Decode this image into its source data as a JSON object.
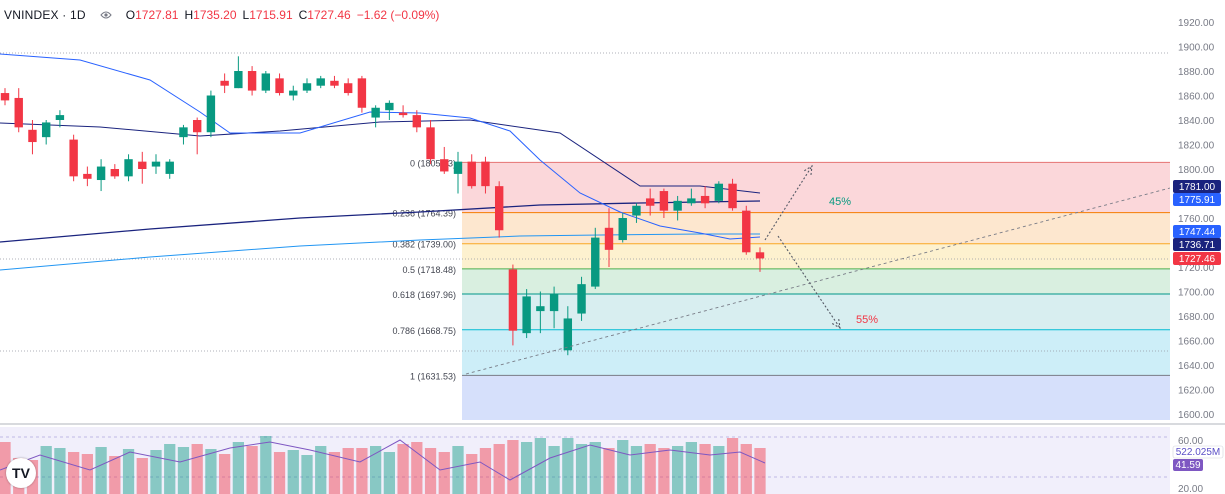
{
  "header": {
    "symbol": "VNINDEX · 1D",
    "open_label": "O",
    "open": "1727.81",
    "high_label": "H",
    "high": "1735.20",
    "low_label": "L",
    "low": "1715.91",
    "close_label": "C",
    "close": "1727.46",
    "change": "−1.62 (−0.09%)",
    "change_color": "#f23645",
    "eye_icon": "eye-icon"
  },
  "logo_text": "TV",
  "colors": {
    "up": "#089981",
    "down": "#f23645",
    "ma_blue": "#2962ff",
    "ma_navy": "#1a237e"
  },
  "price_axis": {
    "min": 1600,
    "max": 1920,
    "step": 20,
    "labels": [
      "1920.00",
      "1900.00",
      "1880.00",
      "1860.00",
      "1840.00",
      "1820.00",
      "1800.00",
      "1780.00",
      "1760.00",
      "1740.00",
      "1720.00",
      "1700.00",
      "1680.00",
      "1660.00",
      "1640.00",
      "1620.00",
      "1600.00"
    ]
  },
  "price_tags": [
    {
      "text": "1781.00",
      "value": 1781.0,
      "color": "#1a237e"
    },
    {
      "text": "1775.91",
      "value": 1775.91,
      "color": "#2962ff"
    },
    {
      "text": "1747.44",
      "value": 1747.44,
      "color": "#2962ff"
    },
    {
      "text": "1736.71",
      "value": 1736.71,
      "color": "#1a237e"
    },
    {
      "text": "1727.46",
      "value": 1727.46,
      "color": "#f23645"
    }
  ],
  "fib_levels": [
    {
      "ratio": "0",
      "text": "0 (1805.43)",
      "value": 1805.43,
      "fill": "#fbd7da",
      "line": "#e57373"
    },
    {
      "ratio": "0.236",
      "text": "0.236 (1764.39)",
      "value": 1764.39,
      "fill": "#fde7cf",
      "line": "#f57c00"
    },
    {
      "ratio": "0.382",
      "text": "0.382 (1739.00)",
      "value": 1739.0,
      "fill": "#fdf1cf",
      "line": "#f9a825"
    },
    {
      "ratio": "0.5",
      "text": "0.5 (1718.48)",
      "value": 1718.48,
      "fill": "#d9efe0",
      "line": "#4caf50"
    },
    {
      "ratio": "0.618",
      "text": "0.618 (1697.96)",
      "value": 1697.96,
      "fill": "#d8eef0",
      "line": "#009688"
    },
    {
      "ratio": "0.786",
      "text": "0.786 (1668.75)",
      "value": 1668.75,
      "fill": "#cdeef8",
      "line": "#00bcd4"
    },
    {
      "ratio": "1",
      "text": "1 (1631.53)",
      "value": 1631.53,
      "fill": "#e5e5e8",
      "line": "#787b86"
    }
  ],
  "fib_extension_fill": "#d6e0fb",
  "annotations": [
    {
      "text": "45%",
      "color": "#089981"
    },
    {
      "text": "55%",
      "color": "#f23645"
    }
  ],
  "candles": [
    [
      1862,
      1866,
      1852,
      1856
    ],
    [
      1858,
      1866,
      1830,
      1834
    ],
    [
      1832,
      1840,
      1812,
      1822
    ],
    [
      1826,
      1840,
      1820,
      1838
    ],
    [
      1840,
      1848,
      1834,
      1844
    ],
    [
      1824,
      1828,
      1790,
      1794
    ],
    [
      1796,
      1802,
      1786,
      1792
    ],
    [
      1791,
      1808,
      1782,
      1802
    ],
    [
      1800,
      1804,
      1792,
      1794
    ],
    [
      1794,
      1812,
      1790,
      1808
    ],
    [
      1806,
      1814,
      1788,
      1800
    ],
    [
      1802,
      1812,
      1796,
      1806
    ],
    [
      1796,
      1808,
      1792,
      1806
    ],
    [
      1826,
      1836,
      1820,
      1834
    ],
    [
      1840,
      1842,
      1812,
      1830
    ],
    [
      1830,
      1864,
      1826,
      1860
    ],
    [
      1872,
      1878,
      1862,
      1868
    ],
    [
      1866,
      1892,
      1866,
      1880
    ],
    [
      1880,
      1884,
      1860,
      1864
    ],
    [
      1864,
      1880,
      1862,
      1878
    ],
    [
      1874,
      1878,
      1860,
      1862
    ],
    [
      1860,
      1868,
      1856,
      1864
    ],
    [
      1864,
      1874,
      1862,
      1870
    ],
    [
      1868,
      1876,
      1866,
      1874
    ],
    [
      1872,
      1876,
      1866,
      1868
    ],
    [
      1870,
      1874,
      1860,
      1862
    ],
    [
      1874,
      1876,
      1846,
      1850
    ],
    [
      1842,
      1852,
      1834,
      1850
    ],
    [
      1848,
      1856,
      1840,
      1854
    ],
    [
      1846,
      1852,
      1842,
      1844
    ],
    [
      1844,
      1848,
      1830,
      1834
    ],
    [
      1834,
      1840,
      1804,
      1808
    ],
    [
      1808,
      1818,
      1796,
      1798
    ],
    [
      1796,
      1814,
      1780,
      1806
    ],
    [
      1806,
      1812,
      1784,
      1786
    ],
    [
      1806,
      1810,
      1780,
      1786
    ],
    [
      1786,
      1790,
      1744,
      1750
    ],
    [
      1718,
      1722,
      1656,
      1668
    ],
    [
      1666,
      1702,
      1662,
      1696
    ],
    [
      1684,
      1700,
      1666,
      1688
    ],
    [
      1684,
      1704,
      1670,
      1698
    ],
    [
      1652,
      1688,
      1648,
      1678
    ],
    [
      1682,
      1712,
      1676,
      1706
    ],
    [
      1704,
      1752,
      1702,
      1744
    ],
    [
      1752,
      1768,
      1720,
      1734
    ],
    [
      1742,
      1764,
      1740,
      1760
    ],
    [
      1762,
      1772,
      1756,
      1770
    ],
    [
      1776,
      1784,
      1762,
      1770
    ],
    [
      1782,
      1784,
      1760,
      1766
    ],
    [
      1766,
      1778,
      1758,
      1774
    ],
    [
      1772,
      1784,
      1770,
      1776
    ],
    [
      1778,
      1786,
      1768,
      1772
    ],
    [
      1774,
      1790,
      1772,
      1788
    ],
    [
      1788,
      1792,
      1766,
      1768
    ],
    [
      1766,
      1770,
      1730,
      1732
    ],
    [
      1732,
      1736,
      1716,
      1727
    ]
  ],
  "volume": {
    "tags": [
      {
        "text": "522.025M",
        "color": "#5b4fc7",
        "bg": "#ffffff"
      },
      {
        "text": "41.59",
        "color": "#ffffff",
        "bg": "#7e57c2"
      }
    ],
    "axis_labels": [
      "60.00",
      "20.00"
    ]
  }
}
